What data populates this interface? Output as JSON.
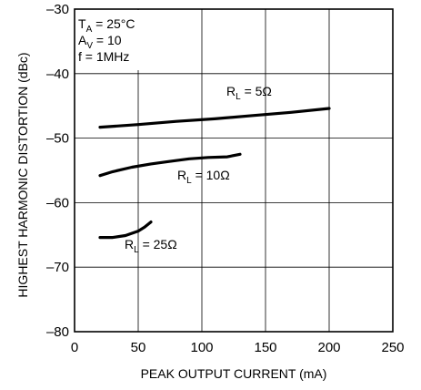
{
  "chart_data": {
    "type": "line",
    "title": "",
    "xlabel": "PEAK OUTPUT CURRENT (mA)",
    "ylabel": "HIGHEST HARMONIC DISTORTION (dBc)",
    "xlim": [
      0,
      250
    ],
    "ylim": [
      -80,
      -30
    ],
    "xticks": [
      0,
      50,
      100,
      150,
      200,
      250
    ],
    "yticks": [
      -30,
      -40,
      -50,
      -60,
      -70,
      -80
    ],
    "xtick_labels": [
      "0",
      "50",
      "100",
      "150",
      "200",
      "250"
    ],
    "ytick_labels": [
      "–30",
      "–40",
      "–50",
      "–60",
      "–70",
      "–80"
    ],
    "grid": true,
    "conditions": [
      {
        "main": "T",
        "sub": "A",
        "rest": " = 25°C"
      },
      {
        "main": "A",
        "sub": "V",
        "rest": " = 10"
      },
      {
        "main": "f = 1MHz",
        "sub": "",
        "rest": ""
      }
    ],
    "series": [
      {
        "label_main": "R",
        "label_sub": "L",
        "label_rest": " = 5Ω",
        "x": [
          20,
          50,
          80,
          110,
          140,
          170,
          200
        ],
        "y": [
          -48.3,
          -47.9,
          -47.4,
          -47.0,
          -46.5,
          -46.0,
          -45.4
        ]
      },
      {
        "label_main": "R",
        "label_sub": "L",
        "label_rest": " = 10Ω",
        "x": [
          20,
          30,
          45,
          60,
          75,
          90,
          105,
          120,
          130
        ],
        "y": [
          -55.8,
          -55.2,
          -54.5,
          -54.0,
          -53.6,
          -53.2,
          -53.0,
          -52.9,
          -52.5
        ]
      },
      {
        "label_main": "R",
        "label_sub": "L",
        "label_rest": " = 25Ω",
        "x": [
          20,
          30,
          40,
          50,
          55,
          60
        ],
        "y": [
          -65.4,
          -65.4,
          -65.1,
          -64.4,
          -63.8,
          -63.0
        ]
      }
    ],
    "line_color": "#000000"
  }
}
